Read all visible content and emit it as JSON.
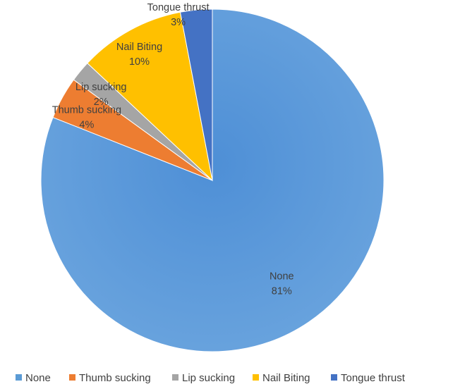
{
  "chart_data": {
    "type": "pie",
    "title": "",
    "categories": [
      "None",
      "Thumb sucking",
      "Lip sucking",
      "Nail Biting",
      "Tongue thrust"
    ],
    "values": [
      81,
      4,
      2,
      10,
      3
    ],
    "data_labels": [
      "81%",
      "4%",
      "2%",
      "10%",
      "3%"
    ],
    "colors": [
      "#5B9BD5",
      "#ED7D31",
      "#A5A5A5",
      "#FFC000",
      "#4472C4"
    ],
    "start_angle_deg": 0,
    "direction": "clockwise",
    "legend": {
      "position": "bottom",
      "entries": [
        "None",
        "Thumb sucking",
        "Lip sucking",
        "Nail Biting",
        "Tongue thrust"
      ]
    }
  }
}
